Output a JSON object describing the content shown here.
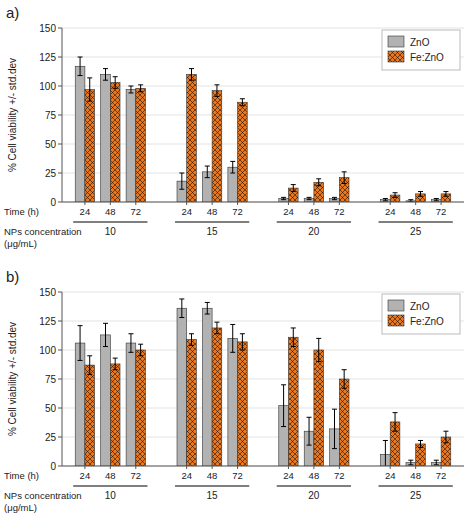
{
  "chart_data": [
    {
      "type": "bar",
      "title": "a)",
      "categories": [
        "24",
        "48",
        "72",
        "24",
        "48",
        "72",
        "24",
        "48",
        "72",
        "24",
        "48",
        "72"
      ],
      "category_groups": [
        "10",
        "15",
        "20",
        "25"
      ],
      "xlabel": "Time (h)",
      "group_label": [
        "NPs concentration",
        "(μg/mL)"
      ],
      "ylabel": "% Cell viability +/- std.dev",
      "series": [
        {
          "name": "ZnO",
          "color": "#b2b2b2",
          "values": [
            117,
            110,
            97,
            18,
            26,
            30,
            3,
            3,
            3,
            2,
            1,
            2
          ],
          "errors": [
            8,
            5,
            3,
            7,
            5,
            5,
            1,
            1,
            1,
            1,
            1,
            1
          ]
        },
        {
          "name": "Fe:ZnO",
          "color": "#e87820",
          "values": [
            97,
            103,
            98,
            110,
            96,
            86,
            12,
            17,
            21,
            6,
            7,
            7
          ],
          "errors": [
            10,
            5,
            3,
            5,
            5,
            3,
            3,
            3,
            5,
            2,
            2,
            2
          ]
        }
      ],
      "ylim": [
        0,
        150
      ],
      "yticks": [
        0,
        25,
        50,
        75,
        100,
        125,
        150
      ],
      "grid": true,
      "legend": "upper right"
    },
    {
      "type": "bar",
      "title": "b)",
      "categories": [
        "24",
        "48",
        "72",
        "24",
        "48",
        "72",
        "24",
        "48",
        "72",
        "24",
        "48",
        "72"
      ],
      "category_groups": [
        "10",
        "15",
        "20",
        "25"
      ],
      "xlabel": "Time (h)",
      "group_label": [
        "NPs concentration",
        "(μg/mL)"
      ],
      "ylabel": "% Cell viability +/- std.dev",
      "series": [
        {
          "name": "ZnO",
          "color": "#b2b2b2",
          "values": [
            106,
            113,
            106,
            136,
            136,
            110,
            52,
            30,
            32,
            10,
            3,
            3
          ],
          "errors": [
            15,
            10,
            8,
            8,
            5,
            12,
            18,
            12,
            17,
            12,
            2,
            2
          ]
        },
        {
          "name": "Fe:ZnO",
          "color": "#e87820",
          "values": [
            87,
            88,
            100,
            109,
            119,
            107,
            111,
            100,
            75,
            38,
            19,
            25
          ],
          "errors": [
            8,
            5,
            5,
            5,
            5,
            7,
            8,
            10,
            8,
            8,
            3,
            5
          ]
        }
      ],
      "ylim": [
        0,
        150
      ],
      "yticks": [
        0,
        25,
        50,
        75,
        100,
        125,
        150
      ],
      "grid": true,
      "legend": "upper right"
    }
  ]
}
